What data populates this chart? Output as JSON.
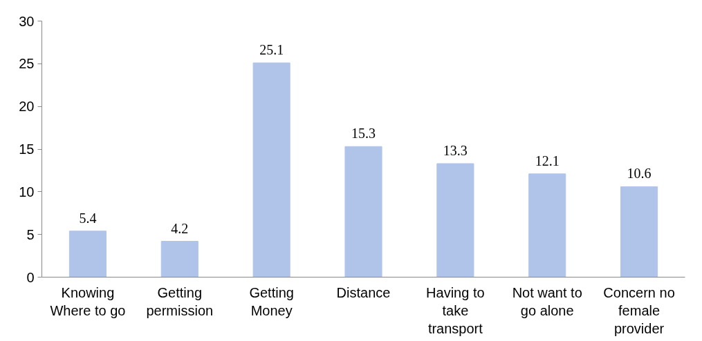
{
  "chart_data": {
    "type": "bar",
    "categories": [
      "Knowing Where to go",
      "Getting permission",
      "Getting Money",
      "Distance",
      "Having to take transport",
      "Not want to go alone",
      "Concern no female provider"
    ],
    "values": [
      5.4,
      4.2,
      25.1,
      15.3,
      13.3,
      12.1,
      10.6
    ],
    "color": "#b0c4ea",
    "ylim": [
      0,
      30
    ],
    "yticks": [
      0,
      5,
      10,
      15,
      20,
      25,
      30
    ],
    "grid": false,
    "data_labels": true
  }
}
